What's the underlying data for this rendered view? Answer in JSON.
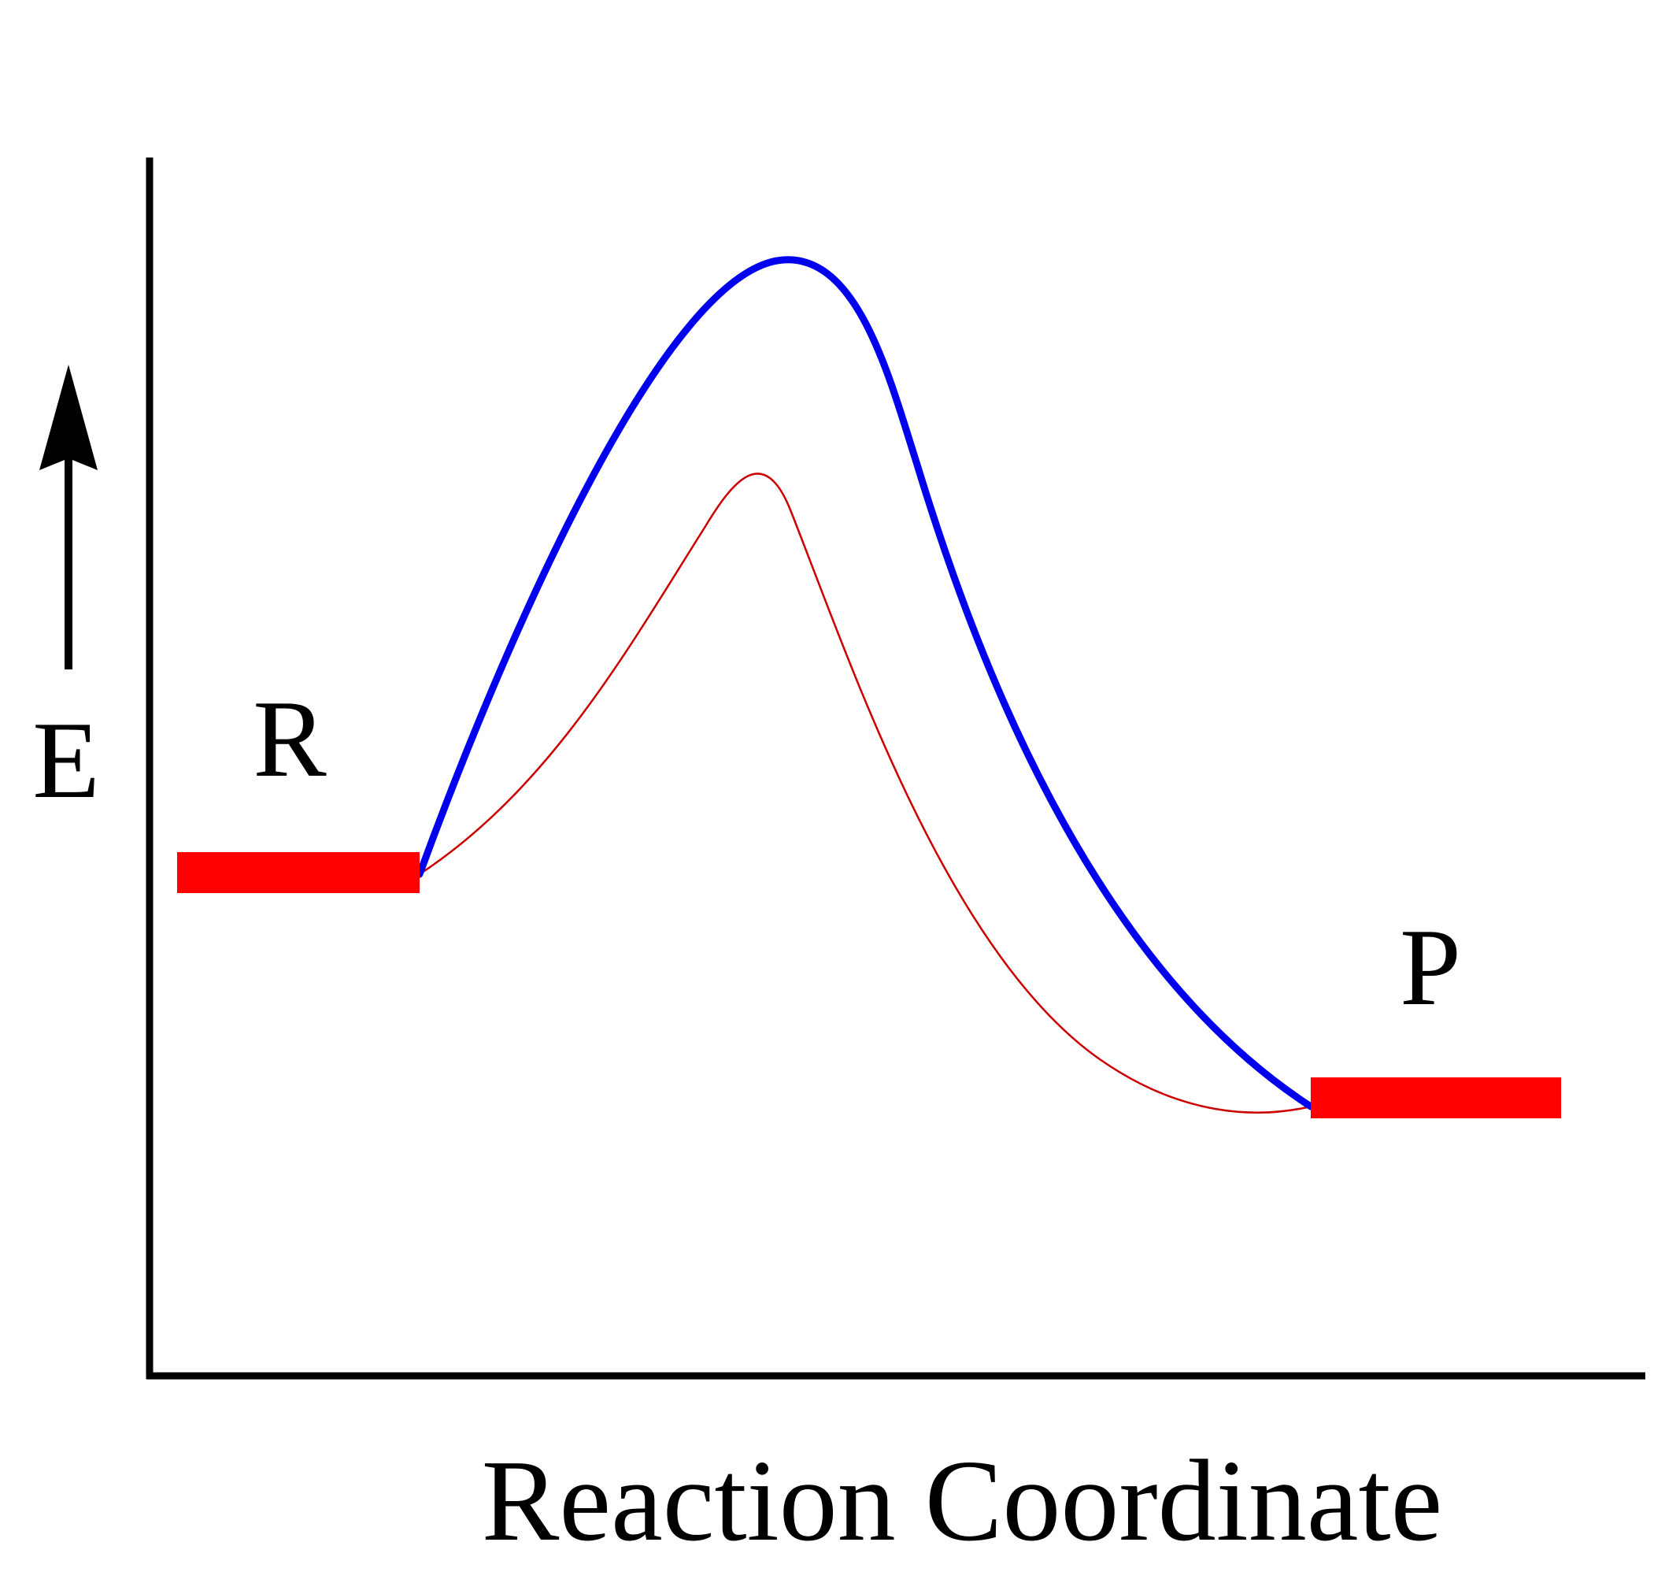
{
  "diagram": {
    "y_axis_label": "E",
    "x_axis_label": "Reaction Coordinate",
    "reactant_label": "R",
    "product_label": "P",
    "colors": {
      "axes": "#000000",
      "energy_levels": "#ff0000",
      "uncatalyzed_curve": "#0000ee",
      "catalyzed_curve": "#cc0000"
    }
  }
}
